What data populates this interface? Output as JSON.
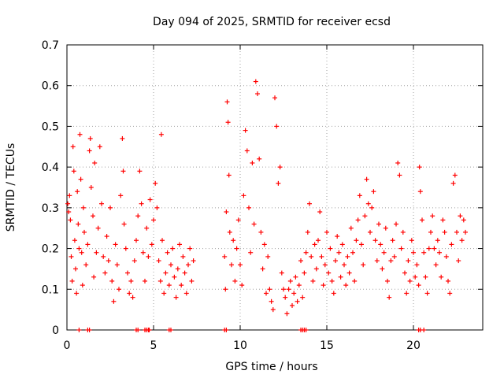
{
  "chart_data": {
    "type": "scatter",
    "title": "Day 094 of 2025, SRMTID for receiver ecsd",
    "xlabel": "GPS time / hours",
    "ylabel": "SRMTID / TECUs",
    "xlim": [
      0,
      24
    ],
    "ylim": [
      0,
      0.7
    ],
    "xticks": [
      0,
      5,
      10,
      15,
      20
    ],
    "xtick_labels": [
      "0",
      "5",
      "10",
      "15",
      "20"
    ],
    "yticks": [
      0,
      0.1,
      0.2,
      0.3,
      0.4,
      0.5,
      0.6,
      0.7
    ],
    "ytick_labels": [
      "0",
      "0.1",
      "0.2",
      "0.3",
      "0.4",
      "0.5",
      "0.6",
      "0.7"
    ],
    "grid": true,
    "marker": "+",
    "color": "#ff0000",
    "series": [
      {
        "name": "SRMTID",
        "points": [
          [
            0.05,
            0.31
          ],
          [
            0.1,
            0.29
          ],
          [
            0.15,
            0.33
          ],
          [
            0.2,
            0.27
          ],
          [
            0.25,
            0.18
          ],
          [
            0.3,
            0.12
          ],
          [
            0.35,
            0.45
          ],
          [
            0.4,
            0.39
          ],
          [
            0.45,
            0.22
          ],
          [
            0.5,
            0.15
          ],
          [
            0.55,
            0.09
          ],
          [
            0.6,
            0.34
          ],
          [
            0.65,
            0.26
          ],
          [
            0.7,
            0.2
          ],
          [
            0.75,
            0.48
          ],
          [
            0.8,
            0.37
          ],
          [
            0.85,
            0.19
          ],
          [
            0.9,
            0.11
          ],
          [
            0.95,
            0.3
          ],
          [
            1.0,
            0.24
          ],
          [
            1.1,
            0.16
          ],
          [
            1.2,
            0.21
          ],
          [
            1.3,
            0.44
          ],
          [
            1.35,
            0.47
          ],
          [
            1.4,
            0.35
          ],
          [
            1.5,
            0.28
          ],
          [
            1.55,
            0.13
          ],
          [
            1.6,
            0.41
          ],
          [
            1.7,
            0.19
          ],
          [
            1.8,
            0.25
          ],
          [
            1.9,
            0.45
          ],
          [
            2.0,
            0.31
          ],
          [
            2.1,
            0.18
          ],
          [
            2.2,
            0.14
          ],
          [
            2.3,
            0.23
          ],
          [
            2.4,
            0.17
          ],
          [
            2.5,
            0.3
          ],
          [
            2.6,
            0.12
          ],
          [
            2.7,
            0.07
          ],
          [
            2.8,
            0.21
          ],
          [
            2.9,
            0.16
          ],
          [
            3.0,
            0.1
          ],
          [
            3.1,
            0.33
          ],
          [
            3.2,
            0.47
          ],
          [
            3.25,
            0.39
          ],
          [
            3.3,
            0.26
          ],
          [
            3.4,
            0.2
          ],
          [
            3.5,
            0.14
          ],
          [
            3.6,
            0.09
          ],
          [
            3.7,
            0.12
          ],
          [
            3.8,
            0.08
          ],
          [
            3.9,
            0.17
          ],
          [
            4.0,
            0.22
          ],
          [
            4.1,
            0.28
          ],
          [
            4.2,
            0.39
          ],
          [
            4.3,
            0.31
          ],
          [
            4.4,
            0.19
          ],
          [
            4.5,
            0.12
          ],
          [
            4.6,
            0.25
          ],
          [
            4.7,
            0.18
          ],
          [
            4.8,
            0.32
          ],
          [
            4.9,
            0.21
          ],
          [
            5.0,
            0.27
          ],
          [
            5.1,
            0.36
          ],
          [
            5.2,
            0.3
          ],
          [
            5.3,
            0.17
          ],
          [
            5.4,
            0.12
          ],
          [
            5.45,
            0.48
          ],
          [
            5.5,
            0.22
          ],
          [
            5.6,
            0.09
          ],
          [
            5.7,
            0.14
          ],
          [
            5.8,
            0.19
          ],
          [
            5.9,
            0.11
          ],
          [
            6.0,
            0.16
          ],
          [
            6.1,
            0.2
          ],
          [
            6.2,
            0.13
          ],
          [
            6.3,
            0.08
          ],
          [
            6.4,
            0.15
          ],
          [
            6.5,
            0.21
          ],
          [
            6.6,
            0.11
          ],
          [
            6.7,
            0.18
          ],
          [
            6.8,
            0.14
          ],
          [
            6.9,
            0.09
          ],
          [
            7.0,
            0.16
          ],
          [
            7.1,
            0.2
          ],
          [
            7.2,
            0.12
          ],
          [
            7.3,
            0.17
          ],
          [
            9.1,
            0.18
          ],
          [
            9.15,
            0.1
          ],
          [
            9.2,
            0.29
          ],
          [
            9.25,
            0.56
          ],
          [
            9.3,
            0.51
          ],
          [
            9.35,
            0.38
          ],
          [
            9.4,
            0.24
          ],
          [
            9.5,
            0.16
          ],
          [
            9.6,
            0.22
          ],
          [
            9.7,
            0.12
          ],
          [
            9.8,
            0.2
          ],
          [
            9.9,
            0.27
          ],
          [
            10.0,
            0.16
          ],
          [
            10.1,
            0.11
          ],
          [
            10.2,
            0.33
          ],
          [
            10.3,
            0.49
          ],
          [
            10.4,
            0.44
          ],
          [
            10.5,
            0.3
          ],
          [
            10.6,
            0.19
          ],
          [
            10.7,
            0.41
          ],
          [
            10.8,
            0.26
          ],
          [
            10.9,
            0.61
          ],
          [
            11.0,
            0.58
          ],
          [
            11.1,
            0.42
          ],
          [
            11.2,
            0.24
          ],
          [
            11.3,
            0.15
          ],
          [
            11.4,
            0.21
          ],
          [
            11.5,
            0.09
          ],
          [
            11.6,
            0.18
          ],
          [
            11.7,
            0.1
          ],
          [
            11.8,
            0.07
          ],
          [
            11.9,
            0.05
          ],
          [
            12.0,
            0.57
          ],
          [
            12.1,
            0.5
          ],
          [
            12.2,
            0.36
          ],
          [
            12.3,
            0.4
          ],
          [
            12.4,
            0.14
          ],
          [
            12.5,
            0.1
          ],
          [
            12.6,
            0.08
          ],
          [
            12.7,
            0.04
          ],
          [
            12.8,
            0.1
          ],
          [
            12.9,
            0.12
          ],
          [
            13.0,
            0.06
          ],
          [
            13.1,
            0.09
          ],
          [
            13.2,
            0.13
          ],
          [
            13.3,
            0.07
          ],
          [
            13.4,
            0.11
          ],
          [
            13.5,
            0.17
          ],
          [
            13.6,
            0.08
          ],
          [
            13.7,
            0.14
          ],
          [
            13.8,
            0.19
          ],
          [
            13.9,
            0.24
          ],
          [
            14.0,
            0.31
          ],
          [
            14.1,
            0.18
          ],
          [
            14.2,
            0.12
          ],
          [
            14.3,
            0.21
          ],
          [
            14.4,
            0.15
          ],
          [
            14.5,
            0.22
          ],
          [
            14.6,
            0.29
          ],
          [
            14.7,
            0.18
          ],
          [
            14.8,
            0.11
          ],
          [
            14.9,
            0.16
          ],
          [
            15.0,
            0.24
          ],
          [
            15.1,
            0.14
          ],
          [
            15.2,
            0.2
          ],
          [
            15.3,
            0.12
          ],
          [
            15.4,
            0.09
          ],
          [
            15.5,
            0.17
          ],
          [
            15.6,
            0.23
          ],
          [
            15.7,
            0.19
          ],
          [
            15.8,
            0.13
          ],
          [
            15.9,
            0.21
          ],
          [
            16.0,
            0.16
          ],
          [
            16.1,
            0.11
          ],
          [
            16.2,
            0.18
          ],
          [
            16.3,
            0.14
          ],
          [
            16.4,
            0.25
          ],
          [
            16.5,
            0.19
          ],
          [
            16.6,
            0.12
          ],
          [
            16.7,
            0.22
          ],
          [
            16.8,
            0.27
          ],
          [
            16.9,
            0.33
          ],
          [
            17.0,
            0.21
          ],
          [
            17.1,
            0.16
          ],
          [
            17.2,
            0.28
          ],
          [
            17.3,
            0.37
          ],
          [
            17.4,
            0.31
          ],
          [
            17.5,
            0.24
          ],
          [
            17.6,
            0.3
          ],
          [
            17.7,
            0.34
          ],
          [
            17.8,
            0.22
          ],
          [
            17.9,
            0.17
          ],
          [
            18.0,
            0.26
          ],
          [
            18.1,
            0.21
          ],
          [
            18.2,
            0.15
          ],
          [
            18.3,
            0.19
          ],
          [
            18.4,
            0.25
          ],
          [
            18.5,
            0.12
          ],
          [
            18.6,
            0.08
          ],
          [
            18.7,
            0.17
          ],
          [
            18.8,
            0.22
          ],
          [
            18.9,
            0.18
          ],
          [
            19.0,
            0.26
          ],
          [
            19.1,
            0.41
          ],
          [
            19.2,
            0.38
          ],
          [
            19.3,
            0.2
          ],
          [
            19.4,
            0.24
          ],
          [
            19.5,
            0.14
          ],
          [
            19.6,
            0.09
          ],
          [
            19.7,
            0.17
          ],
          [
            19.8,
            0.12
          ],
          [
            19.9,
            0.22
          ],
          [
            20.0,
            0.19
          ],
          [
            20.1,
            0.13
          ],
          [
            20.2,
            0.16
          ],
          [
            20.3,
            0.11
          ],
          [
            20.35,
            0.4
          ],
          [
            20.4,
            0.34
          ],
          [
            20.5,
            0.27
          ],
          [
            20.6,
            0.19
          ],
          [
            20.7,
            0.13
          ],
          [
            20.8,
            0.09
          ],
          [
            20.9,
            0.2
          ],
          [
            21.0,
            0.24
          ],
          [
            21.1,
            0.28
          ],
          [
            21.2,
            0.2
          ],
          [
            21.3,
            0.16
          ],
          [
            21.4,
            0.22
          ],
          [
            21.5,
            0.19
          ],
          [
            21.6,
            0.13
          ],
          [
            21.7,
            0.27
          ],
          [
            21.8,
            0.24
          ],
          [
            21.9,
            0.18
          ],
          [
            22.0,
            0.12
          ],
          [
            22.1,
            0.09
          ],
          [
            22.2,
            0.21
          ],
          [
            22.3,
            0.36
          ],
          [
            22.4,
            0.38
          ],
          [
            22.5,
            0.24
          ],
          [
            22.6,
            0.17
          ],
          [
            22.7,
            0.28
          ],
          [
            22.8,
            0.22
          ],
          [
            22.9,
            0.27
          ],
          [
            23.0,
            0.24
          ]
        ]
      },
      {
        "name": "near-zero",
        "points": [
          [
            0.7,
            0
          ],
          [
            1.2,
            0
          ],
          [
            1.3,
            0
          ],
          [
            4.0,
            0
          ],
          [
            4.1,
            0
          ],
          [
            4.5,
            0
          ],
          [
            4.6,
            0
          ],
          [
            4.7,
            0
          ],
          [
            4.75,
            0
          ],
          [
            5.9,
            0
          ],
          [
            6.0,
            0
          ],
          [
            9.1,
            0
          ],
          [
            9.2,
            0
          ],
          [
            13.5,
            0
          ],
          [
            13.6,
            0
          ],
          [
            13.7,
            0
          ],
          [
            13.8,
            0
          ],
          [
            20.3,
            0
          ],
          [
            20.4,
            0
          ],
          [
            20.6,
            0
          ]
        ]
      }
    ]
  }
}
